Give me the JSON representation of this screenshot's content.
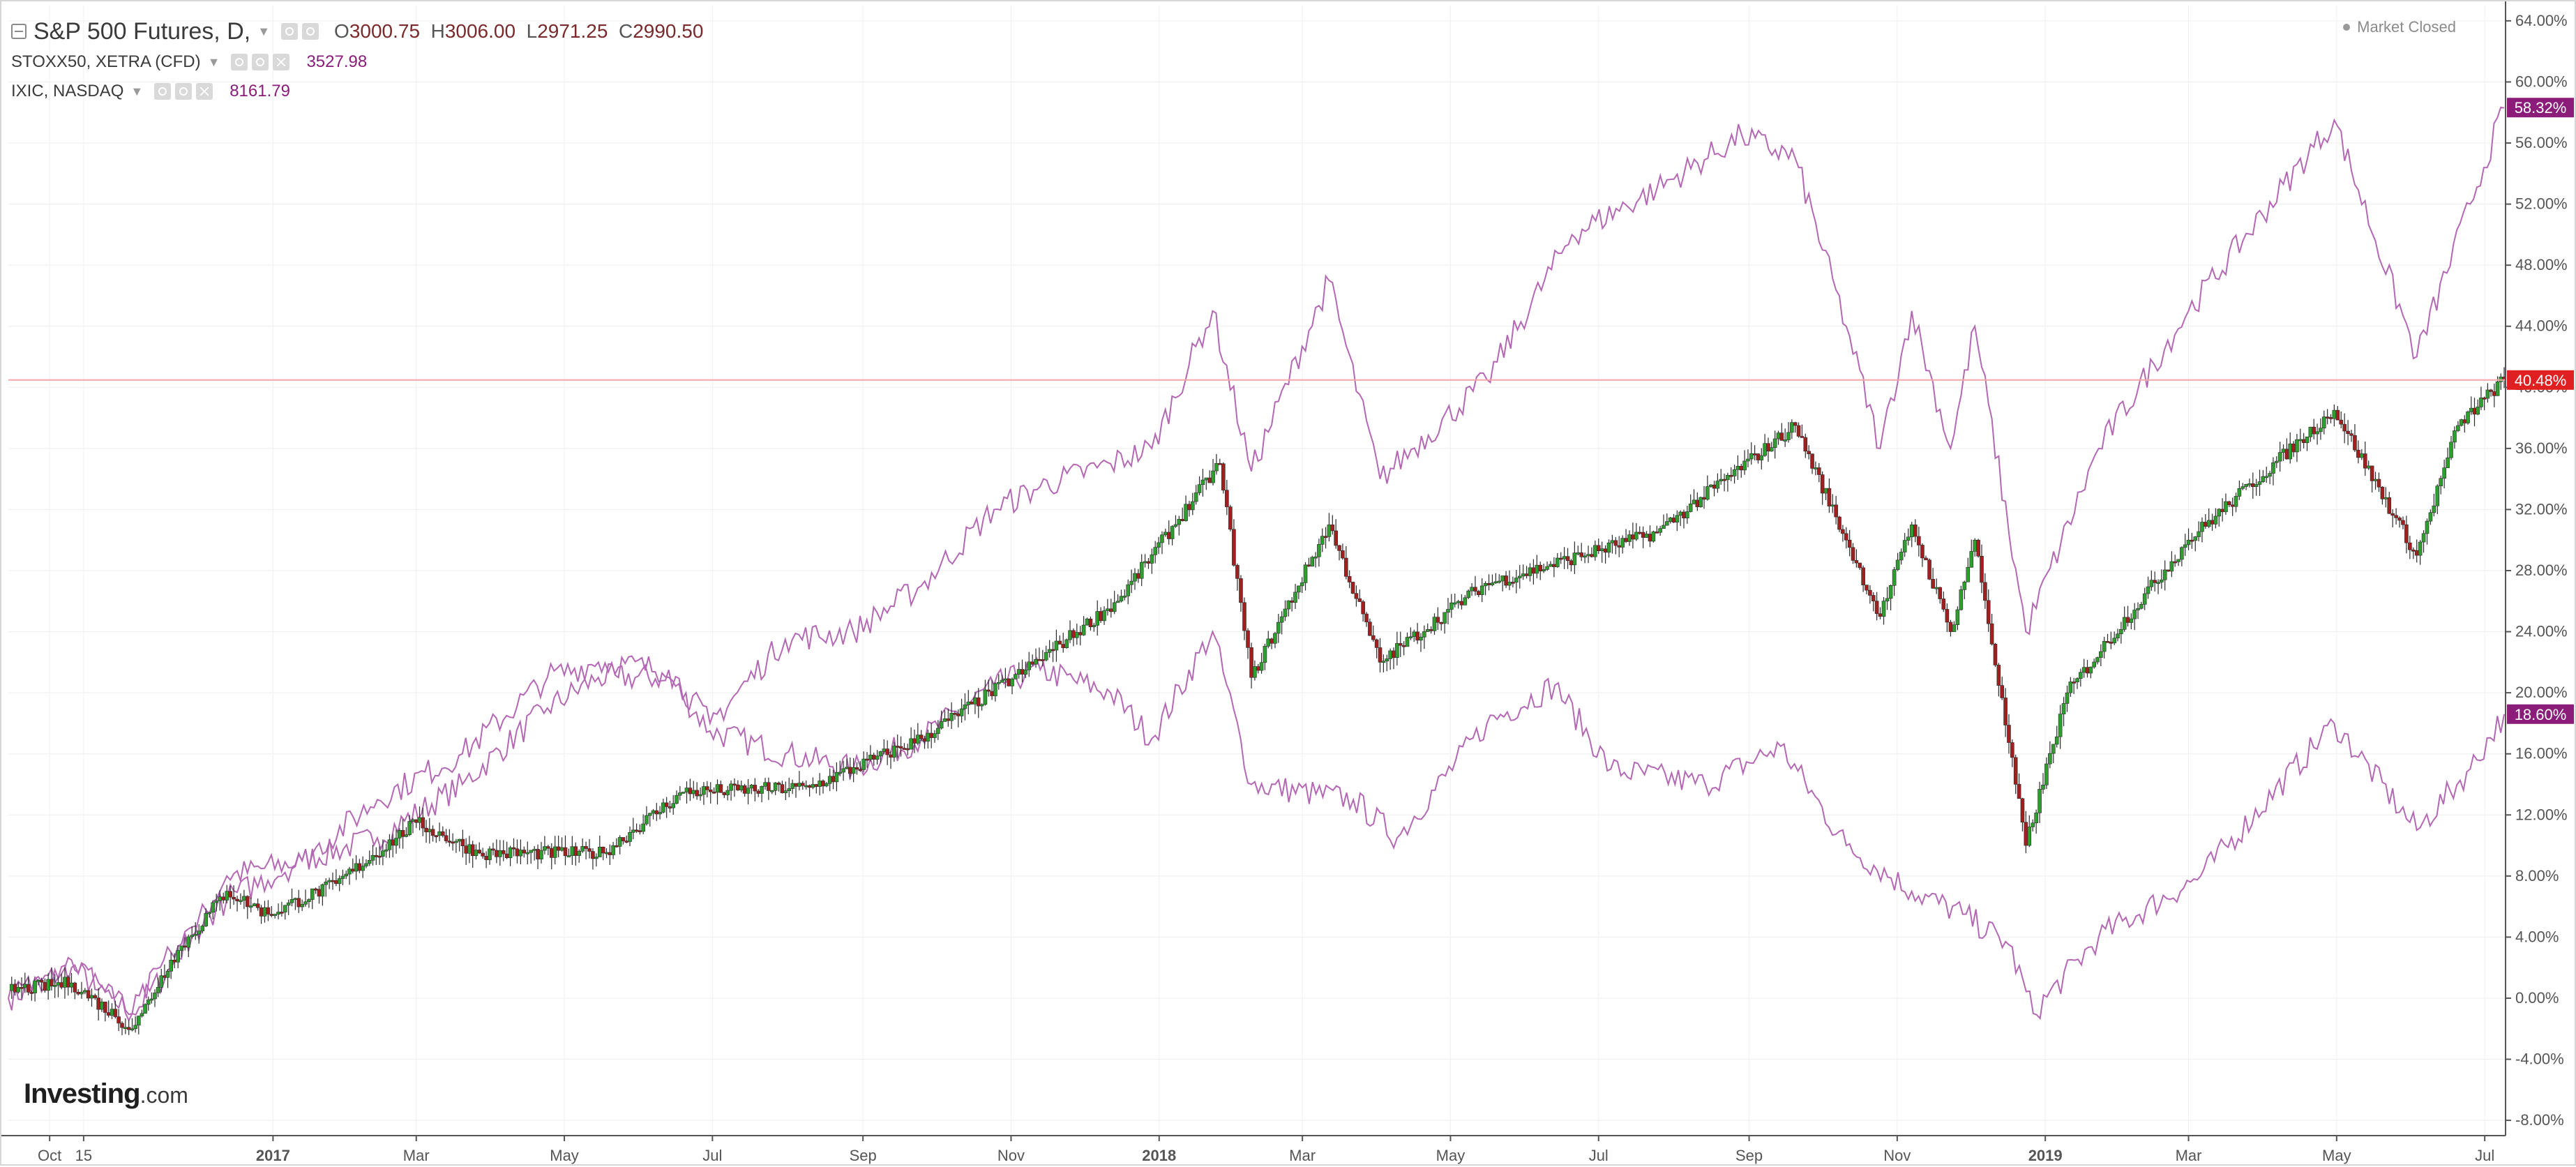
{
  "legend": {
    "main": {
      "symbol": "S&P 500 Futures, D,",
      "o_key": "O",
      "o": "3000.75",
      "h_key": "H",
      "h": "3006.00",
      "l_key": "L",
      "l": "2971.25",
      "c_key": "C",
      "c": "2990.50"
    },
    "overlays": [
      {
        "symbol": "STOXX50, XETRA (CFD)",
        "value": "3527.98"
      },
      {
        "symbol": "IXIC, NASDAQ",
        "value": "8161.79"
      }
    ]
  },
  "status": {
    "text": "Market Closed"
  },
  "logo": {
    "brand": "Investing",
    "domain": ".com"
  },
  "icons": [
    "collapse-icon",
    "eye-icon",
    "settings-icon",
    "close-icon",
    "dropdown-caret-icon"
  ],
  "colors": {
    "up_candle": "#2e9e2e",
    "down_candle": "#a02020",
    "compare_line": "#b468b4",
    "price_line": "#f4a6a6",
    "last_price_badge": "#e02020",
    "compare_badge": "#8b1c7a",
    "axis_text": "#555555"
  },
  "chart_data": {
    "type": "line",
    "ylabel_format": "percent change",
    "ylim": [
      -9,
      65
    ],
    "y_ticks": [
      "64.00%",
      "60.00%",
      "56.00%",
      "52.00%",
      "48.00%",
      "44.00%",
      "40.00%",
      "36.00%",
      "32.00%",
      "28.00%",
      "24.00%",
      "20.00%",
      "16.00%",
      "12.00%",
      "8.00%",
      "4.00%",
      "0.00%",
      "-4.00%",
      "-8.00%"
    ],
    "y_tick_values": [
      64,
      60,
      56,
      52,
      48,
      44,
      40,
      36,
      32,
      28,
      24,
      20,
      16,
      12,
      8,
      4,
      0,
      -4,
      -8
    ],
    "x_range": [
      "2016-09-14",
      "2019-07-09"
    ],
    "x_ticks": [
      {
        "label": "Oct",
        "date": "2016-10-01",
        "bold": false
      },
      {
        "label": "15",
        "date": "2016-10-15",
        "bold": false
      },
      {
        "label": "2017",
        "date": "2017-01-01",
        "bold": true
      },
      {
        "label": "Mar",
        "date": "2017-03-01",
        "bold": false
      },
      {
        "label": "May",
        "date": "2017-05-01",
        "bold": false
      },
      {
        "label": "Jul",
        "date": "2017-07-01",
        "bold": false
      },
      {
        "label": "Sep",
        "date": "2017-09-01",
        "bold": false
      },
      {
        "label": "Nov",
        "date": "2017-11-01",
        "bold": false
      },
      {
        "label": "2018",
        "date": "2018-01-01",
        "bold": true
      },
      {
        "label": "Mar",
        "date": "2018-03-01",
        "bold": false
      },
      {
        "label": "May",
        "date": "2018-05-01",
        "bold": false
      },
      {
        "label": "Jul",
        "date": "2018-07-01",
        "bold": false
      },
      {
        "label": "Sep",
        "date": "2018-09-01",
        "bold": false
      },
      {
        "label": "Nov",
        "date": "2018-11-01",
        "bold": false
      },
      {
        "label": "2019",
        "date": "2019-01-01",
        "bold": true
      },
      {
        "label": "Mar",
        "date": "2019-03-01",
        "bold": false
      },
      {
        "label": "May",
        "date": "2019-05-01",
        "bold": false
      },
      {
        "label": "Jul",
        "date": "2019-07-01",
        "bold": false
      }
    ],
    "current_price_line": 40.48,
    "badges": [
      {
        "text": "58.32%",
        "value": 58.32,
        "color": "#8b1c7a"
      },
      {
        "text": "40.48%",
        "value": 40.48,
        "color": "#e02020"
      },
      {
        "text": "18.60%",
        "value": 18.6,
        "color": "#8b1c7a"
      }
    ],
    "series": [
      {
        "name": "S&P 500 Futures, D,",
        "kind": "candles",
        "points": [
          {
            "x": "2016-09-14",
            "y": 0.5
          },
          {
            "x": "2016-10-10",
            "y": 1.0
          },
          {
            "x": "2016-11-04",
            "y": -2.0
          },
          {
            "x": "2016-11-08",
            "y": -1.0
          },
          {
            "x": "2016-11-20",
            "y": 2.5
          },
          {
            "x": "2016-12-13",
            "y": 7.0
          },
          {
            "x": "2016-12-30",
            "y": 5.5
          },
          {
            "x": "2017-01-27",
            "y": 7.5
          },
          {
            "x": "2017-03-01",
            "y": 11.5
          },
          {
            "x": "2017-03-27",
            "y": 9.5
          },
          {
            "x": "2017-05-17",
            "y": 9.5
          },
          {
            "x": "2017-06-19",
            "y": 13.5
          },
          {
            "x": "2017-08-10",
            "y": 13.8
          },
          {
            "x": "2017-09-25",
            "y": 17.0
          },
          {
            "x": "2017-11-07",
            "y": 21.5
          },
          {
            "x": "2017-12-15",
            "y": 26.0
          },
          {
            "x": "2018-01-26",
            "y": 35.0
          },
          {
            "x": "2018-02-08",
            "y": 21.0
          },
          {
            "x": "2018-03-12",
            "y": 31.0
          },
          {
            "x": "2018-04-02",
            "y": 22.0
          },
          {
            "x": "2018-05-14",
            "y": 27.0
          },
          {
            "x": "2018-07-25",
            "y": 30.5
          },
          {
            "x": "2018-09-20",
            "y": 37.5
          },
          {
            "x": "2018-10-11",
            "y": 30.0
          },
          {
            "x": "2018-10-25",
            "y": 25.0
          },
          {
            "x": "2018-11-07",
            "y": 31.0
          },
          {
            "x": "2018-11-23",
            "y": 24.0
          },
          {
            "x": "2018-12-03",
            "y": 30.0
          },
          {
            "x": "2018-12-24",
            "y": 10.0
          },
          {
            "x": "2019-01-10",
            "y": 20.0
          },
          {
            "x": "2019-03-01",
            "y": 30.0
          },
          {
            "x": "2019-04-30",
            "y": 38.5
          },
          {
            "x": "2019-06-03",
            "y": 29.0
          },
          {
            "x": "2019-06-20",
            "y": 37.5
          },
          {
            "x": "2019-07-09",
            "y": 40.5
          }
        ]
      },
      {
        "name": "STOXX50, XETRA (CFD)",
        "kind": "line",
        "points": [
          {
            "x": "2016-09-14",
            "y": 0.0
          },
          {
            "x": "2016-10-10",
            "y": 2.0
          },
          {
            "x": "2016-11-04",
            "y": -1.0
          },
          {
            "x": "2016-11-20",
            "y": 2.0
          },
          {
            "x": "2016-12-13",
            "y": 8.0
          },
          {
            "x": "2017-01-13",
            "y": 9.0
          },
          {
            "x": "2017-02-13",
            "y": 10.5
          },
          {
            "x": "2017-03-20",
            "y": 14.0
          },
          {
            "x": "2017-04-24",
            "y": 19.0
          },
          {
            "x": "2017-05-15",
            "y": 21.0
          },
          {
            "x": "2017-06-13",
            "y": 21.0
          },
          {
            "x": "2017-06-30",
            "y": 17.5
          },
          {
            "x": "2017-07-31",
            "y": 16.0
          },
          {
            "x": "2017-08-28",
            "y": 15.0
          },
          {
            "x": "2017-09-25",
            "y": 17.0
          },
          {
            "x": "2017-10-25",
            "y": 20.5
          },
          {
            "x": "2017-11-13",
            "y": 21.5
          },
          {
            "x": "2017-12-12",
            "y": 20.0
          },
          {
            "x": "2017-12-29",
            "y": 17.0
          },
          {
            "x": "2018-01-23",
            "y": 24.0
          },
          {
            "x": "2018-02-08",
            "y": 14.0
          },
          {
            "x": "2018-03-22",
            "y": 13.0
          },
          {
            "x": "2018-04-09",
            "y": 10.5
          },
          {
            "x": "2018-05-16",
            "y": 18.0
          },
          {
            "x": "2018-06-13",
            "y": 20.5
          },
          {
            "x": "2018-07-06",
            "y": 15.0
          },
          {
            "x": "2018-08-14",
            "y": 14.0
          },
          {
            "x": "2018-09-14",
            "y": 16.5
          },
          {
            "x": "2018-10-11",
            "y": 10.0
          },
          {
            "x": "2018-11-07",
            "y": 7.0
          },
          {
            "x": "2018-11-28",
            "y": 5.5
          },
          {
            "x": "2018-12-17",
            "y": 3.5
          },
          {
            "x": "2018-12-27",
            "y": -1.0
          },
          {
            "x": "2019-01-23",
            "y": 4.0
          },
          {
            "x": "2019-03-06",
            "y": 8.0
          },
          {
            "x": "2019-04-30",
            "y": 18.0
          },
          {
            "x": "2019-06-03",
            "y": 11.0
          },
          {
            "x": "2019-06-25",
            "y": 15.0
          },
          {
            "x": "2019-07-09",
            "y": 18.6
          }
        ]
      },
      {
        "name": "IXIC, NASDAQ",
        "kind": "line",
        "points": [
          {
            "x": "2016-09-14",
            "y": 0.0
          },
          {
            "x": "2016-10-10",
            "y": 2.5
          },
          {
            "x": "2016-11-04",
            "y": -1.0
          },
          {
            "x": "2016-11-20",
            "y": 3.0
          },
          {
            "x": "2016-12-13",
            "y": 6.5
          },
          {
            "x": "2017-01-13",
            "y": 9.0
          },
          {
            "x": "2017-02-13",
            "y": 13.0
          },
          {
            "x": "2017-03-20",
            "y": 16.0
          },
          {
            "x": "2017-04-24",
            "y": 21.0
          },
          {
            "x": "2017-05-15",
            "y": 22.0
          },
          {
            "x": "2017-06-13",
            "y": 21.5
          },
          {
            "x": "2017-06-30",
            "y": 18.0
          },
          {
            "x": "2017-07-31",
            "y": 23.5
          },
          {
            "x": "2017-08-28",
            "y": 24.0
          },
          {
            "x": "2017-09-25",
            "y": 27.0
          },
          {
            "x": "2017-10-25",
            "y": 32.0
          },
          {
            "x": "2017-11-13",
            "y": 33.5
          },
          {
            "x": "2017-12-12",
            "y": 35.0
          },
          {
            "x": "2017-12-29",
            "y": 36.0
          },
          {
            "x": "2018-01-23",
            "y": 45.0
          },
          {
            "x": "2018-02-08",
            "y": 34.5
          },
          {
            "x": "2018-03-12",
            "y": 47.0
          },
          {
            "x": "2018-04-02",
            "y": 34.0
          },
          {
            "x": "2018-05-16",
            "y": 40.5
          },
          {
            "x": "2018-06-20",
            "y": 50.0
          },
          {
            "x": "2018-07-25",
            "y": 53.0
          },
          {
            "x": "2018-08-29",
            "y": 56.5
          },
          {
            "x": "2018-09-20",
            "y": 55.0
          },
          {
            "x": "2018-10-11",
            "y": 44.0
          },
          {
            "x": "2018-10-25",
            "y": 36.0
          },
          {
            "x": "2018-11-07",
            "y": 45.0
          },
          {
            "x": "2018-11-23",
            "y": 36.0
          },
          {
            "x": "2018-12-03",
            "y": 44.0
          },
          {
            "x": "2018-12-24",
            "y": 24.0
          },
          {
            "x": "2019-01-23",
            "y": 36.0
          },
          {
            "x": "2019-03-01",
            "y": 45.0
          },
          {
            "x": "2019-04-30",
            "y": 57.5
          },
          {
            "x": "2019-06-03",
            "y": 42.0
          },
          {
            "x": "2019-06-25",
            "y": 52.0
          },
          {
            "x": "2019-07-09",
            "y": 58.3
          }
        ]
      }
    ]
  }
}
